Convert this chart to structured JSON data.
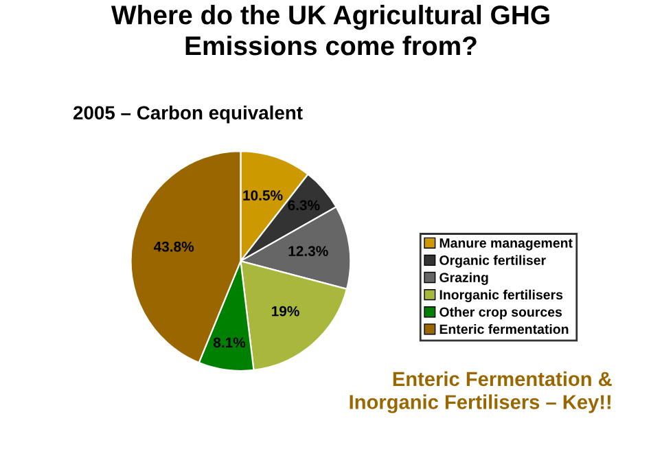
{
  "chart_data": {
    "type": "pie",
    "title": "Where do the UK Agricultural GHG\nEmissions come from?",
    "subtitle": "2005 – Carbon equivalent",
    "categories": [
      "Manure management",
      "Organic fertiliser",
      "Grazing",
      "Inorganic fertilisers",
      "Other crop sources",
      "Enteric fermentation"
    ],
    "values": [
      10.5,
      6.3,
      12.3,
      19,
      8.1,
      43.8
    ],
    "value_labels": [
      "10.5%",
      "6.3%",
      "12.3%",
      "19%",
      "8.1%",
      "43.8%"
    ],
    "colors": [
      "#cc9900",
      "#333333",
      "#666666",
      "#a9b83c",
      "#008000",
      "#996600"
    ],
    "legend": "right",
    "annotations": [
      "Enteric Fermentation &\nInorganic Fertilisers – Key!!"
    ]
  }
}
